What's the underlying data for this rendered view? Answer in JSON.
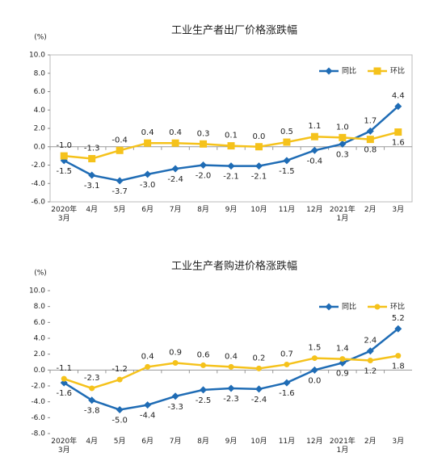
{
  "chart_data": [
    {
      "type": "line",
      "title": "工业生产者出厂价格涨跌幅",
      "y_label": "(%)",
      "categories": [
        "2020年\n3月",
        "4月",
        "5月",
        "6月",
        "7月",
        "8月",
        "9月",
        "10月",
        "11月",
        "12月",
        "2021年\n1月",
        "2月",
        "3月"
      ],
      "series": [
        {
          "name": "同比",
          "color": "#1f6cb5",
          "marker": "diamond",
          "values": [
            -1.5,
            -3.1,
            -3.7,
            -3.0,
            -2.4,
            -2.0,
            -2.1,
            -2.1,
            -1.5,
            -0.4,
            0.3,
            1.7,
            4.4
          ],
          "value_labels": [
            "-1.5",
            "-3.1",
            "-3.7",
            "-3.0",
            "-2.4",
            "-2.0",
            "-2.1",
            "-2.1",
            "-1.5",
            "-0.4",
            "0.3",
            "1.7",
            "4.4"
          ]
        },
        {
          "name": "环比",
          "color": "#f5c21b",
          "marker": "square",
          "values": [
            -1.0,
            -1.3,
            -0.4,
            0.4,
            0.4,
            0.3,
            0.1,
            0.0,
            0.5,
            1.1,
            1.0,
            0.8,
            1.6
          ],
          "value_labels": [
            "-1.0",
            "-1.3",
            "-0.4",
            "0.4",
            "0.4",
            "0.3",
            "0.1",
            "0.0",
            "0.5",
            "1.1",
            "1.0",
            "0.8",
            "1.6"
          ]
        }
      ],
      "ylim": [
        -6,
        10
      ],
      "yticks": [
        {
          "value": -6,
          "label": "-6.0"
        },
        {
          "value": -4,
          "label": "-4.0"
        },
        {
          "value": -2,
          "label": "-2.0"
        },
        {
          "value": 0,
          "label": "0.0"
        },
        {
          "value": 2,
          "label": "2.0"
        },
        {
          "value": 4,
          "label": "4.0"
        },
        {
          "value": 6,
          "label": "6.0"
        },
        {
          "value": 8,
          "label": "8.0"
        },
        {
          "value": 10,
          "label": "10.0"
        }
      ],
      "legend": "upper right",
      "frame": true
    },
    {
      "type": "line",
      "title": "工业生产者购进价格涨跌幅",
      "y_label": "(%)",
      "categories": [
        "2020年\n3月",
        "4月",
        "5月",
        "6月",
        "7月",
        "8月",
        "9月",
        "10月",
        "11月",
        "12月",
        "2021年\n1月",
        "2月",
        "3月"
      ],
      "series": [
        {
          "name": "同比",
          "color": "#1f6cb5",
          "marker": "diamond",
          "values": [
            -1.6,
            -3.8,
            -5.0,
            -4.4,
            -3.3,
            -2.5,
            -2.3,
            -2.4,
            -1.6,
            0.0,
            0.9,
            2.4,
            5.2
          ],
          "value_labels": [
            "-1.6",
            "-3.8",
            "-5.0",
            "-4.4",
            "-3.3",
            "-2.5",
            "-2.3",
            "-2.4",
            "-1.6",
            "0.0",
            "0.9",
            "2.4",
            "5.2"
          ]
        },
        {
          "name": "环比",
          "color": "#f5c21b",
          "marker": "circle",
          "values": [
            -1.1,
            -2.3,
            -1.2,
            0.4,
            0.9,
            0.6,
            0.4,
            0.2,
            0.7,
            1.5,
            1.4,
            1.2,
            1.8
          ],
          "value_labels": [
            "-1.1",
            "-2.3",
            "-1.2",
            "0.4",
            "0.9",
            "0.6",
            "0.4",
            "0.2",
            "0.7",
            "1.5",
            "1.4",
            "1.2",
            "1.8"
          ]
        }
      ],
      "ylim": [
        -8,
        10
      ],
      "yticks": [
        {
          "value": -8,
          "label": "-8.0"
        },
        {
          "value": -6,
          "label": "-6.0"
        },
        {
          "value": -4,
          "label": "-4.0"
        },
        {
          "value": -2,
          "label": "-2.0"
        },
        {
          "value": 0,
          "label": "0.0"
        },
        {
          "value": 2,
          "label": "2.0"
        },
        {
          "value": 4,
          "label": "4.0"
        },
        {
          "value": 6,
          "label": "6.0"
        },
        {
          "value": 8,
          "label": "8.0"
        },
        {
          "value": 10,
          "label": "10.0"
        }
      ],
      "legend": "upper right",
      "frame": false
    }
  ]
}
